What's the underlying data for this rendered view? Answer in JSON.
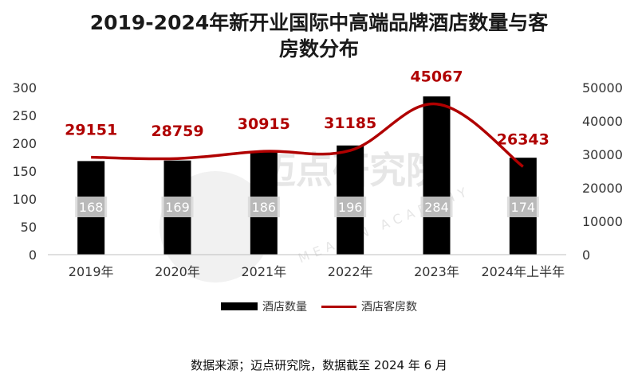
{
  "title": {
    "line1": "2019-2024年新开业国际中高端品牌酒店数量与客",
    "line2": "房数分布"
  },
  "source": "数据来源；迈点研究院，数据截至 2024 年 6 月",
  "watermark": {
    "main": "迈点研究院",
    "sub": "MEADIN ACADEMY"
  },
  "colors": {
    "bar": "#000000",
    "line": "#b00000",
    "bar_label_bg": "#d9d9d9",
    "bar_label_text": "#ffffff"
  },
  "chart_data": {
    "type": "bar",
    "categories": [
      "2019年",
      "2020年",
      "2021年",
      "2022年",
      "2023年",
      "2024年上半年"
    ],
    "series": [
      {
        "name": "酒店数量",
        "type": "bar",
        "axis": "left",
        "values": [
          168,
          169,
          186,
          196,
          284,
          174
        ]
      },
      {
        "name": "酒店客房数",
        "type": "line",
        "axis": "right",
        "smooth": true,
        "values": [
          29151,
          28759,
          30915,
          31185,
          45067,
          26343
        ]
      }
    ],
    "y_left": {
      "min": 0,
      "max": 300,
      "ticks": [
        0,
        50,
        100,
        150,
        200,
        250,
        300
      ]
    },
    "y_right": {
      "min": 0,
      "max": 50000,
      "ticks": [
        0,
        10000,
        20000,
        30000,
        40000,
        50000
      ]
    },
    "legend_position": "bottom",
    "grid": false
  }
}
